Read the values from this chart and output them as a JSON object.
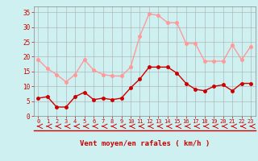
{
  "x": [
    0,
    1,
    2,
    3,
    4,
    5,
    6,
    7,
    8,
    9,
    10,
    11,
    12,
    13,
    14,
    15,
    16,
    17,
    18,
    19,
    20,
    21,
    22,
    23
  ],
  "wind_avg": [
    6,
    6.5,
    3,
    3,
    6.5,
    8,
    5.5,
    6,
    5.5,
    6,
    9.5,
    12.5,
    16.5,
    16.5,
    16.5,
    14.5,
    11,
    9,
    8.5,
    10,
    10.5,
    8.5,
    11,
    11
  ],
  "wind_gust": [
    19,
    16,
    14,
    11.5,
    14,
    19,
    15.5,
    14,
    13.5,
    13.5,
    16.5,
    27,
    34.5,
    34,
    31.5,
    31.5,
    24.5,
    24.5,
    18.5,
    18.5,
    18.5,
    24,
    19,
    23.5
  ],
  "xlabel": "Vent moyen/en rafales ( km/h )",
  "yticks": [
    0,
    5,
    10,
    15,
    20,
    25,
    30,
    35
  ],
  "xticks": [
    0,
    1,
    2,
    3,
    4,
    5,
    6,
    7,
    8,
    9,
    10,
    11,
    12,
    13,
    14,
    15,
    16,
    17,
    18,
    19,
    20,
    21,
    22,
    23
  ],
  "bg_color": "#cff0f0",
  "grid_color": "#aaaaaa",
  "line_avg_color": "#cc0000",
  "line_gust_color": "#ff9999",
  "marker_size": 2.5,
  "line_width": 1.0
}
